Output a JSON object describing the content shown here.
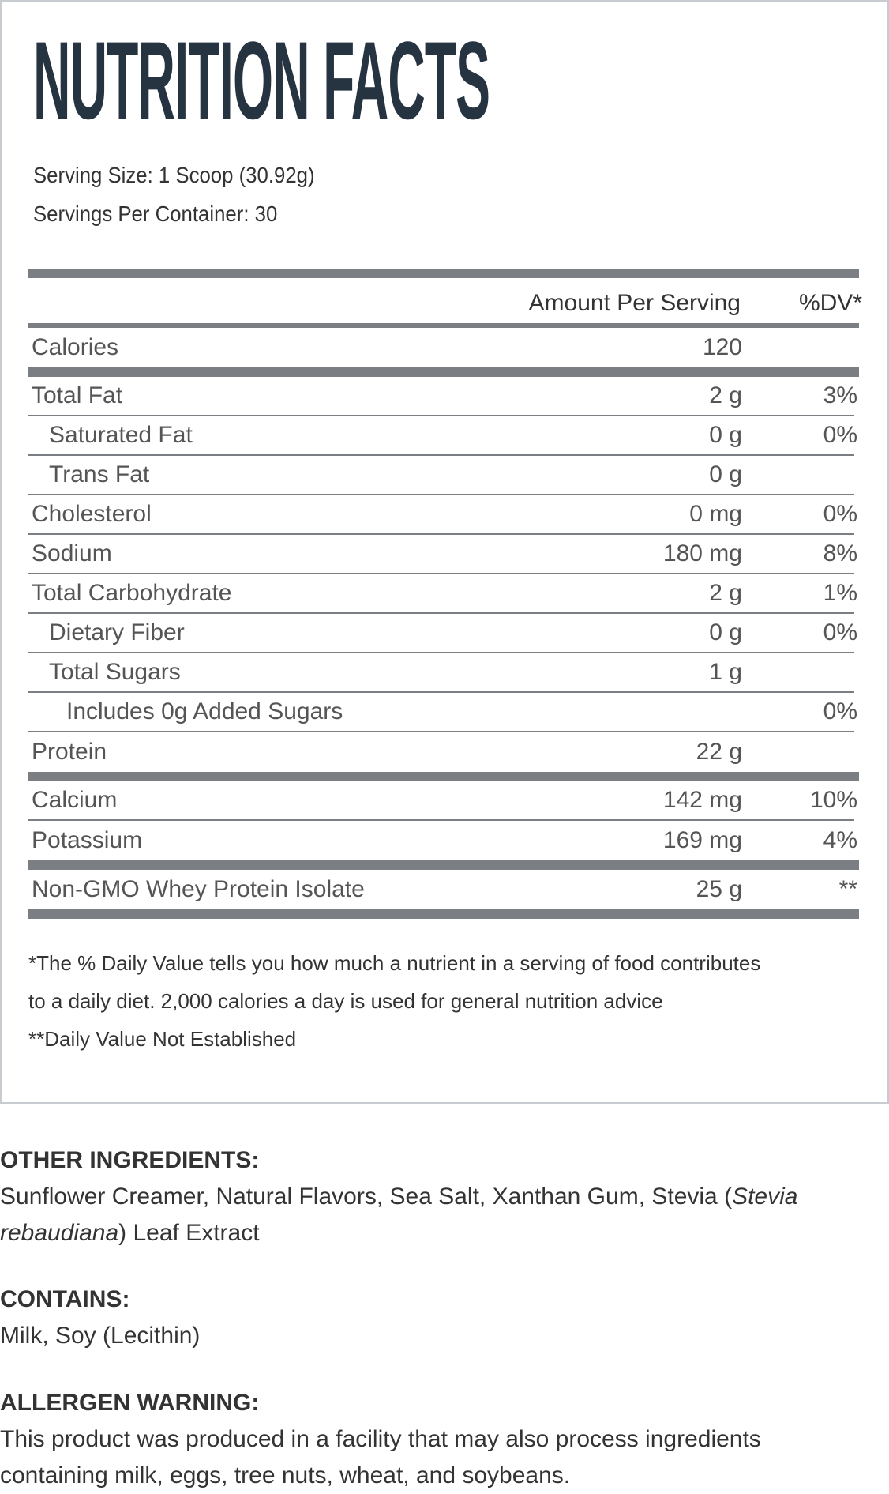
{
  "panel": {
    "title": "NUTRITION FACTS",
    "serving_size": "Serving Size: 1 Scoop (30.92g)",
    "servings_per_container": "Servings Per Container: 30",
    "header": {
      "amount": "Amount Per Serving",
      "dv": "%DV*"
    },
    "calories": {
      "label": "Calories",
      "amount": "120"
    },
    "rows_main": [
      {
        "label": "Total Fat",
        "amount": "2 g",
        "dv": "3%",
        "indent": 0
      },
      {
        "label": "Saturated Fat",
        "amount": "0 g",
        "dv": "0%",
        "indent": 1
      },
      {
        "label": "Trans Fat",
        "amount": "0 g",
        "dv": "",
        "indent": 1
      },
      {
        "label": "Cholesterol",
        "amount": "0 mg",
        "dv": "0%",
        "indent": 0
      },
      {
        "label": "Sodium",
        "amount": "180 mg",
        "dv": "8%",
        "indent": 0
      },
      {
        "label": "Total Carbohydrate",
        "amount": "2 g",
        "dv": "1%",
        "indent": 0
      },
      {
        "label": "Dietary Fiber",
        "amount": "0 g",
        "dv": "0%",
        "indent": 1
      },
      {
        "label": "Total Sugars",
        "amount": "1 g",
        "dv": "",
        "indent": 1
      },
      {
        "label": "Includes 0g Added Sugars",
        "amount": "",
        "dv": "0%",
        "indent": 2
      },
      {
        "label": "Protein",
        "amount": "22 g",
        "dv": "",
        "indent": 0
      }
    ],
    "rows_minerals": [
      {
        "label": "Calcium",
        "amount": "142 mg",
        "dv": "10%",
        "indent": 0
      },
      {
        "label": "Potassium",
        "amount": "169 mg",
        "dv": "4%",
        "indent": 0
      }
    ],
    "rows_other": [
      {
        "label": "Non-GMO Whey Protein Isolate",
        "amount": "25 g",
        "dv": "**",
        "indent": 0
      }
    ],
    "footnotes": [
      "*The % Daily Value tells you how much a nutrient in a serving of food contributes",
      "to a daily diet. 2,000 calories a day is used for general nutrition advice",
      "**Daily Value Not Established"
    ]
  },
  "other_ingredients": {
    "heading": "OTHER INGREDIENTS:",
    "text_before": "Sunflower Creamer, Natural Flavors, Sea Salt, Xanthan Gum, Stevia (",
    "text_italic": "Stevia rebaudiana",
    "text_after": ") Leaf Extract"
  },
  "contains": {
    "heading": "CONTAINS:",
    "text": "Milk, Soy (Lecithin)"
  },
  "allergen": {
    "heading": "ALLERGEN WARNING:",
    "text": "This product was produced in a facility that may also process ingredients containing milk, eggs, tree nuts, wheat, and soybeans."
  },
  "colors": {
    "title": "#263341",
    "rule": "#7b7f83",
    "text": "#333333",
    "row_text": "#555555",
    "border": "#c8ccd0"
  }
}
